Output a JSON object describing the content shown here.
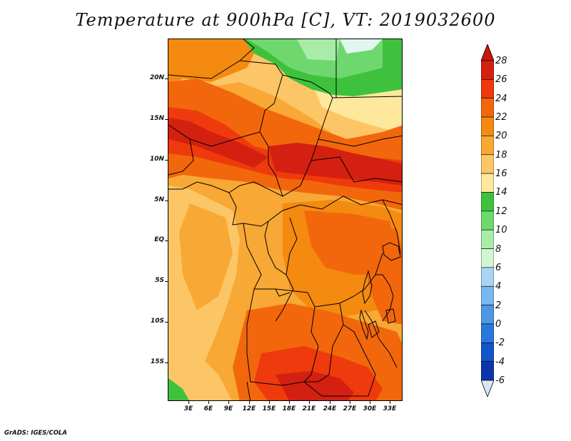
{
  "title": "Temperature at 900hPa [C], VT: 2019032600",
  "credit": "GrADS: IGES/COLA",
  "lat_labels": [
    "20N",
    "15N",
    "10N",
    "5N",
    "EQ",
    "5S",
    "10S",
    "15S"
  ],
  "lon_labels": [
    "3E",
    "6E",
    "9E",
    "12E",
    "15E",
    "18E",
    "21E",
    "24E",
    "27E",
    "30E",
    "33E"
  ],
  "colorbar": {
    "labels": [
      "28",
      "26",
      "24",
      "22",
      "20",
      "18",
      "16",
      "14",
      "12",
      "10",
      "8",
      "6",
      "4",
      "2",
      "0",
      "-2",
      "-4",
      "-6"
    ],
    "colors": [
      "#d42010",
      "#ee3a0c",
      "#f2670c",
      "#f48a10",
      "#f8a834",
      "#fcc666",
      "#fde89c",
      "#3ec23e",
      "#6ed86e",
      "#a8eca8",
      "#d2f6d2",
      "#a9d4f4",
      "#78b8ee",
      "#4c98e6",
      "#2a78dc",
      "#1056c8",
      "#0c36a8",
      "#0a1a7a"
    ],
    "above_color": "#c81808",
    "below_color": "#dce6f4"
  },
  "field_colors": {
    "deep_red": "#d42010",
    "red": "#ee3a0c",
    "orange_red": "#f2670c",
    "orange": "#f48a10",
    "light_orange": "#f8a834",
    "tan": "#fcc666",
    "pale_yellow": "#fde89c",
    "green": "#3ec23e",
    "mid_green": "#6ed86e",
    "light_green": "#a8eca8",
    "pale_cyan": "#dff7f0"
  }
}
